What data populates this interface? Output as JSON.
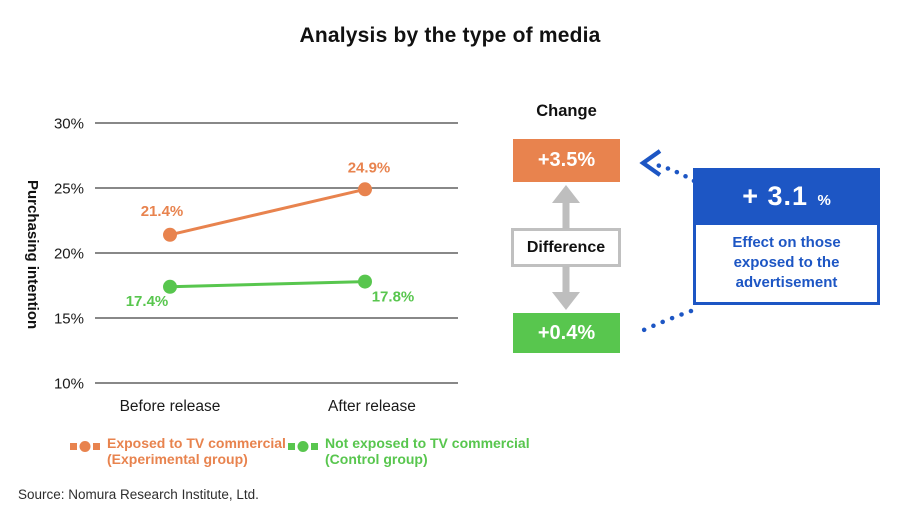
{
  "title": "Analysis by the type of media",
  "chart_data": {
    "type": "line",
    "categories": [
      "Before release",
      "After release"
    ],
    "series": [
      {
        "name": "Exposed to TV commercial (Experimental group)",
        "values": [
          21.4,
          24.9
        ],
        "labels": [
          "21.4%",
          "24.9%"
        ],
        "color": "#E8834E"
      },
      {
        "name": "Not exposed to TV commercial (Control group)",
        "values": [
          17.4,
          17.8
        ],
        "labels": [
          "17.4%",
          "17.8%"
        ],
        "color": "#58C64E"
      }
    ],
    "title": "Analysis by the type of media",
    "xlabel": "",
    "ylabel": "Purchasing intention",
    "ylim": [
      10,
      30
    ],
    "yticks": [
      10,
      15,
      20,
      25,
      30
    ],
    "ytick_labels": [
      "10%",
      "15%",
      "20%",
      "25%",
      "30%"
    ],
    "grid": "horizontal gridlines only",
    "legend_position": "bottom"
  },
  "legend": {
    "items": [
      {
        "line1": "Exposed to TV commercial",
        "line2": "(Experimental group)"
      },
      {
        "line1": "Not exposed to TV commercial",
        "line2": "(Control group)"
      }
    ]
  },
  "panel": {
    "heading": "Change",
    "experimental_change": "+3.5%",
    "difference_label": "Difference",
    "control_change": "+0.4%"
  },
  "callout": {
    "value": "+ 3.1",
    "unit": "%",
    "description": "Effect on those\nexposed to the\nadvertisement"
  },
  "source": "Source: Nomura Research Institute, Ltd.",
  "colors": {
    "orange": "#E8834E",
    "green": "#58C64E",
    "blue": "#1D56C4",
    "gray_arrow": "#BEBEBE",
    "grid": "#777777"
  }
}
